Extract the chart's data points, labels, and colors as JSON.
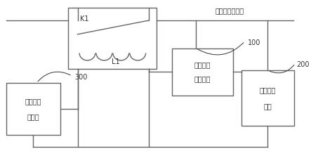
{
  "bg_color": "#ffffff",
  "line_color": "#666666",
  "box_border_color": "#666666",
  "box_fill_color": "#ffffff",
  "text_color": "#333333",
  "font_size": 7.0,
  "top_label": "高压供电输出端",
  "label_100": "100",
  "label_200": "200",
  "label_300": "300",
  "label_K1": "K1",
  "label_L1": "L1",
  "conv_label1": "第一电源",
  "conv_label2": "转换电路",
  "back_label1": "备用供电",
  "back_label2": "模块",
  "batt_label1": "电池包管",
  "batt_label2": "理模块"
}
